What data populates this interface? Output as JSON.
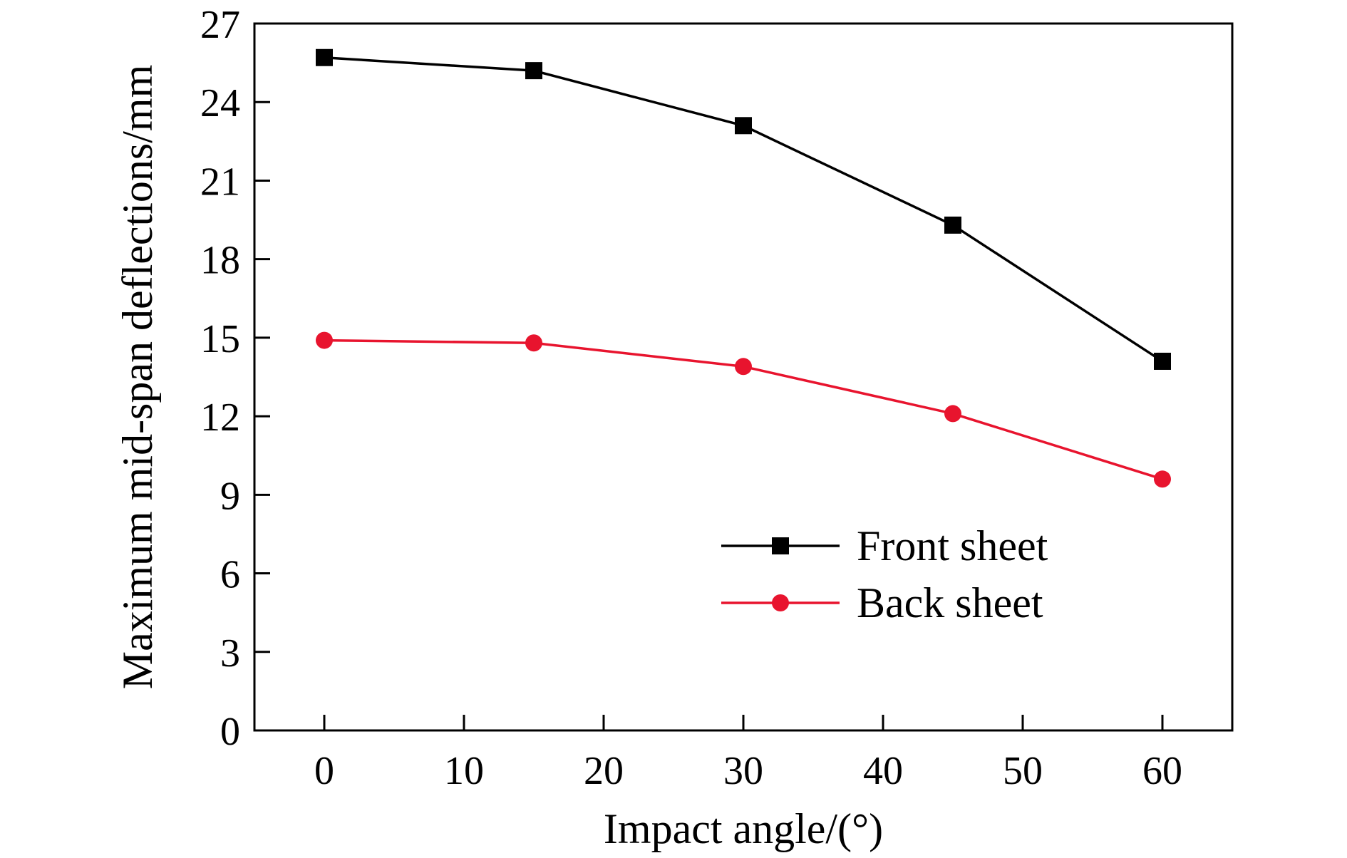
{
  "chart_data": {
    "type": "line",
    "title": "",
    "xlabel": "Impact angle/(°)",
    "ylabel": "Maximum mid-span deflections/mm",
    "xlim": [
      -5,
      65
    ],
    "ylim": [
      0,
      27
    ],
    "xticks": [
      0,
      10,
      20,
      30,
      40,
      50,
      60
    ],
    "yticks": [
      0,
      3,
      6,
      9,
      12,
      15,
      18,
      21,
      24,
      27
    ],
    "grid": false,
    "legend_position": "lower-right",
    "series": [
      {
        "name": "Front sheet",
        "color": "#000000",
        "marker": "square",
        "x": [
          0,
          15,
          30,
          45,
          60
        ],
        "y": [
          25.7,
          25.2,
          23.1,
          19.3,
          14.1
        ]
      },
      {
        "name": "Back sheet",
        "color": "#e8142e",
        "marker": "circle",
        "x": [
          0,
          15,
          30,
          45,
          60
        ],
        "y": [
          14.9,
          14.8,
          13.9,
          12.1,
          9.6
        ]
      }
    ]
  }
}
